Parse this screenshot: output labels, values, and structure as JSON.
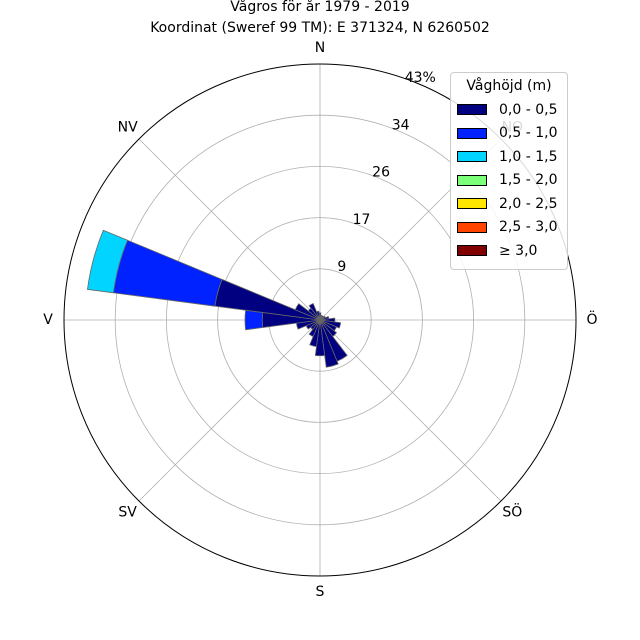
{
  "title_line1": "Vågros för år 1979 - 2019",
  "title_line2": "Koordinat (Sweref 99 TM): E 371324, N 6260502",
  "chart_data": {
    "type": "polar-stacked-bar",
    "title": "Vågros för år 1979 - 2019",
    "subtitle": "Koordinat (Sweref 99 TM): E 371324, N 6260502",
    "direction_labels": [
      {
        "label": "N",
        "angle": 0
      },
      {
        "label": "NO",
        "angle": 45
      },
      {
        "label": "Ö",
        "angle": 90
      },
      {
        "label": "SÖ",
        "angle": 135
      },
      {
        "label": "S",
        "angle": 180
      },
      {
        "label": "SV",
        "angle": 225
      },
      {
        "label": "V",
        "angle": 270
      },
      {
        "label": "NV",
        "angle": 315
      }
    ],
    "radial_ticks": [
      {
        "value": 8.6,
        "label": "9"
      },
      {
        "value": 17.2,
        "label": "17"
      },
      {
        "value": 25.8,
        "label": "26"
      },
      {
        "value": 34.4,
        "label": "34"
      },
      {
        "value": 43,
        "label": "43%"
      }
    ],
    "r_max": 43,
    "sector_width_deg": 15,
    "legend": {
      "title": "Våghöjd (m)",
      "placement": "top-right",
      "entries": [
        {
          "label": "0,0 - 0,5",
          "color": "#000080"
        },
        {
          "label": "0,5 - 1,0",
          "color": "#0022ff"
        },
        {
          "label": "1,0 - 1,5",
          "color": "#00d4ff"
        },
        {
          "label": "1,5 - 2,0",
          "color": "#7cff79"
        },
        {
          "label": "2,0 - 2,5",
          "color": "#ffe600"
        },
        {
          "label": "2,5 - 3,0",
          "color": "#ff4400"
        },
        {
          "label": "≥ 3,0",
          "color": "#800000"
        }
      ]
    },
    "sectors": [
      {
        "direction": 0,
        "values": [
          1.2,
          0,
          0,
          0,
          0,
          0,
          0
        ]
      },
      {
        "direction": 15,
        "values": [
          0.8,
          0,
          0,
          0,
          0,
          0,
          0
        ]
      },
      {
        "direction": 30,
        "values": [
          0.8,
          0,
          0,
          0,
          0,
          0,
          0
        ]
      },
      {
        "direction": 45,
        "values": [
          0.8,
          0,
          0,
          0,
          0,
          0,
          0
        ]
      },
      {
        "direction": 60,
        "values": [
          1.0,
          0,
          0,
          0,
          0,
          0,
          0
        ]
      },
      {
        "direction": 75,
        "values": [
          1.5,
          0,
          0,
          0,
          0,
          0,
          0
        ]
      },
      {
        "direction": 90,
        "values": [
          2.5,
          0,
          0,
          0,
          0,
          0,
          0
        ]
      },
      {
        "direction": 105,
        "values": [
          3.5,
          0,
          0,
          0,
          0,
          0,
          0
        ]
      },
      {
        "direction": 120,
        "values": [
          3.0,
          0,
          0,
          0,
          0,
          0,
          0
        ]
      },
      {
        "direction": 135,
        "values": [
          3.5,
          0,
          0,
          0,
          0,
          0,
          0
        ]
      },
      {
        "direction": 150,
        "values": [
          7.5,
          0,
          0,
          0,
          0,
          0,
          0
        ]
      },
      {
        "direction": 165,
        "values": [
          8.0,
          0,
          0,
          0,
          0,
          0,
          0
        ]
      },
      {
        "direction": 180,
        "values": [
          6.0,
          0,
          0,
          0,
          0,
          0,
          0
        ]
      },
      {
        "direction": 195,
        "values": [
          4.5,
          0,
          0,
          0,
          0,
          0,
          0
        ]
      },
      {
        "direction": 210,
        "values": [
          3.0,
          0,
          0,
          0,
          0,
          0,
          0
        ]
      },
      {
        "direction": 225,
        "values": [
          2.0,
          0,
          0,
          0,
          0,
          0,
          0
        ]
      },
      {
        "direction": 240,
        "values": [
          2.5,
          0,
          0,
          0,
          0,
          0,
          0
        ]
      },
      {
        "direction": 255,
        "values": [
          4.0,
          0,
          0,
          0,
          0,
          0,
          0
        ]
      },
      {
        "direction": 270,
        "values": [
          9.7,
          2.9,
          0,
          0,
          0,
          0,
          0
        ]
      },
      {
        "direction": 285,
        "values": [
          17.8,
          17.2,
          4.4,
          0,
          0,
          0,
          0
        ]
      },
      {
        "direction": 300,
        "values": [
          4.5,
          0,
          0,
          0,
          0,
          0,
          0
        ]
      },
      {
        "direction": 315,
        "values": [
          2.5,
          0,
          0,
          0,
          0,
          0,
          0
        ]
      },
      {
        "direction": 330,
        "values": [
          3.0,
          0,
          0,
          0,
          0,
          0,
          0
        ]
      },
      {
        "direction": 345,
        "values": [
          1.5,
          0,
          0,
          0,
          0,
          0,
          0
        ]
      }
    ]
  }
}
